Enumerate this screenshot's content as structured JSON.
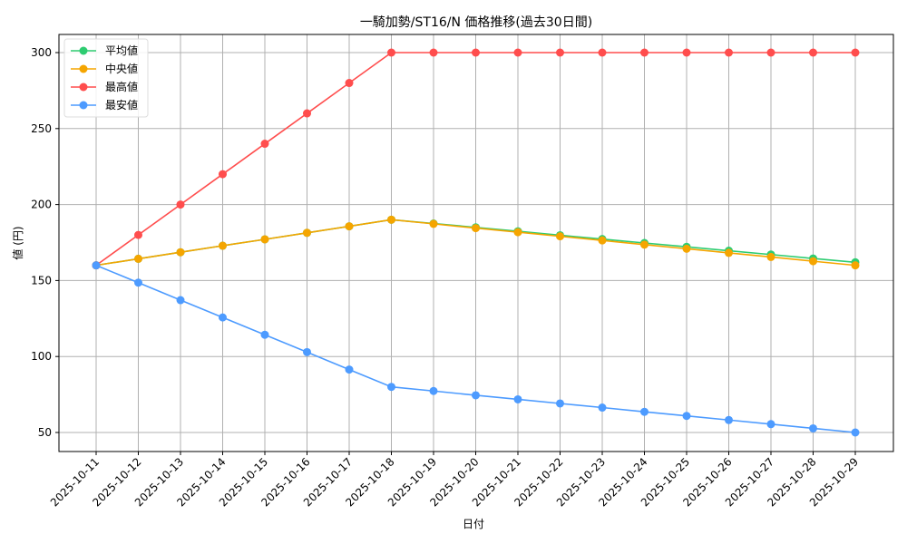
{
  "chart_data": {
    "type": "line",
    "title": "一騎加勢/ST16/N 価格推移(過去30日間)",
    "xlabel": "日付",
    "ylabel": "値 (円)",
    "ylim": [
      38,
      312
    ],
    "yticks": [
      50,
      100,
      150,
      200,
      250,
      300
    ],
    "grid": true,
    "legend_position": "upper left",
    "categories": [
      "2025-10-11",
      "2025-10-12",
      "2025-10-13",
      "2025-10-14",
      "2025-10-15",
      "2025-10-16",
      "2025-10-17",
      "2025-10-18",
      "2025-10-19",
      "2025-10-20",
      "2025-10-21",
      "2025-10-22",
      "2025-10-23",
      "2025-10-24",
      "2025-10-25",
      "2025-10-26",
      "2025-10-27",
      "2025-10-28",
      "2025-10-29"
    ],
    "series": [
      {
        "name": "平均値",
        "color": "#2ecc71",
        "values": [
          160,
          164.3,
          168.6,
          172.9,
          177.1,
          181.4,
          185.7,
          190,
          187.5,
          185,
          182.4,
          179.8,
          177.3,
          174.7,
          172.2,
          169.6,
          167.1,
          164.5,
          162
        ]
      },
      {
        "name": "中央値",
        "color": "#f5a500",
        "values": [
          160,
          164.3,
          168.6,
          172.9,
          177.1,
          181.4,
          185.7,
          190,
          187.3,
          184.5,
          181.8,
          179.1,
          176.4,
          173.6,
          170.9,
          168.2,
          165.5,
          162.7,
          160
        ]
      },
      {
        "name": "最高値",
        "color": "#ff4d4d",
        "values": [
          160,
          180,
          200,
          220,
          240,
          260,
          280,
          300,
          300,
          300,
          300,
          300,
          300,
          300,
          300,
          300,
          300,
          300,
          300
        ]
      },
      {
        "name": "最安値",
        "color": "#4d9bff",
        "values": [
          160,
          148.6,
          137.1,
          125.7,
          114.3,
          102.9,
          91.4,
          80,
          77.3,
          74.5,
          71.8,
          69.1,
          66.4,
          63.6,
          60.9,
          58.2,
          55.5,
          52.7,
          50
        ]
      }
    ]
  }
}
